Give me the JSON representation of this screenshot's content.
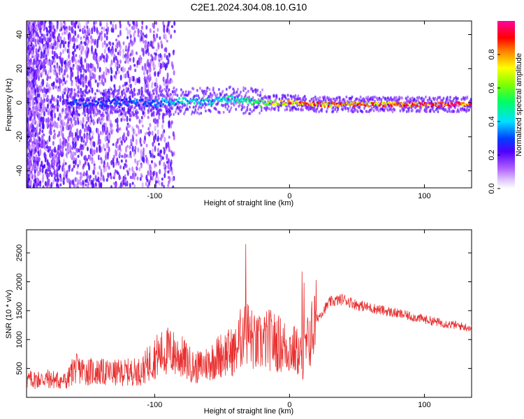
{
  "title": "C2E1.2024.304.08.10.G10",
  "chart_data": [
    {
      "type": "heatmap",
      "xlabel": "Height of straight line (km)",
      "ylabel": "Frequency (Hz)",
      "xlim": [
        -195,
        135
      ],
      "ylim": [
        -50,
        48
      ],
      "x_ticks": [
        -100,
        0,
        100
      ],
      "y_ticks": [
        -40,
        -20,
        0,
        20,
        40
      ],
      "colorbar": {
        "label": "Normalized spectral amplitude",
        "range": [
          0,
          1
        ],
        "ticks": [
          0.0,
          0.2,
          0.4,
          0.6,
          0.8
        ]
      },
      "ridge": {
        "description_values": "spectral energy concentrated near 0 Hz across heights",
        "center_freq_hz": [
          [
            -160,
            0
          ],
          [
            -130,
            0
          ],
          [
            -100,
            0
          ],
          [
            -80,
            1
          ],
          [
            -60,
            1
          ],
          [
            -40,
            2
          ],
          [
            -20,
            0
          ],
          [
            0,
            0
          ],
          [
            20,
            -1
          ],
          [
            60,
            -1
          ],
          [
            100,
            -1
          ],
          [
            135,
            -1
          ]
        ],
        "peak_amplitude": [
          [
            -160,
            0.3
          ],
          [
            -130,
            0.3
          ],
          [
            -100,
            0.35
          ],
          [
            -80,
            0.45
          ],
          [
            -60,
            0.45
          ],
          [
            -40,
            0.5
          ],
          [
            -20,
            0.6
          ],
          [
            0,
            0.85
          ],
          [
            20,
            0.85
          ],
          [
            60,
            0.85
          ],
          [
            100,
            0.95
          ],
          [
            135,
            0.95
          ]
        ]
      }
    },
    {
      "type": "line",
      "xlabel": "Height of straight line (km)",
      "ylabel": "SNR (10 * v/v)",
      "xlim": [
        -195,
        135
      ],
      "ylim": [
        0,
        2900
      ],
      "x_ticks": [
        -100,
        0,
        100
      ],
      "y_ticks": [
        500,
        1000,
        1500,
        2000,
        2500
      ],
      "color": "#e83030",
      "series": [
        {
          "x": [
            -195,
            -180,
            -165,
            -160,
            -150,
            -130,
            -110,
            -100,
            -90,
            -80,
            -70,
            -60,
            -50,
            -40,
            -33,
            -25,
            -15,
            -5,
            5,
            10,
            20,
            30,
            40,
            50,
            70,
            90,
            110,
            135
          ],
          "y": [
            300,
            320,
            280,
            500,
            450,
            420,
            450,
            700,
            800,
            700,
            500,
            600,
            750,
            800,
            1200,
            900,
            1000,
            900,
            800,
            700,
            1350,
            1650,
            1700,
            1600,
            1500,
            1400,
            1300,
            1200
          ]
        }
      ]
    }
  ]
}
